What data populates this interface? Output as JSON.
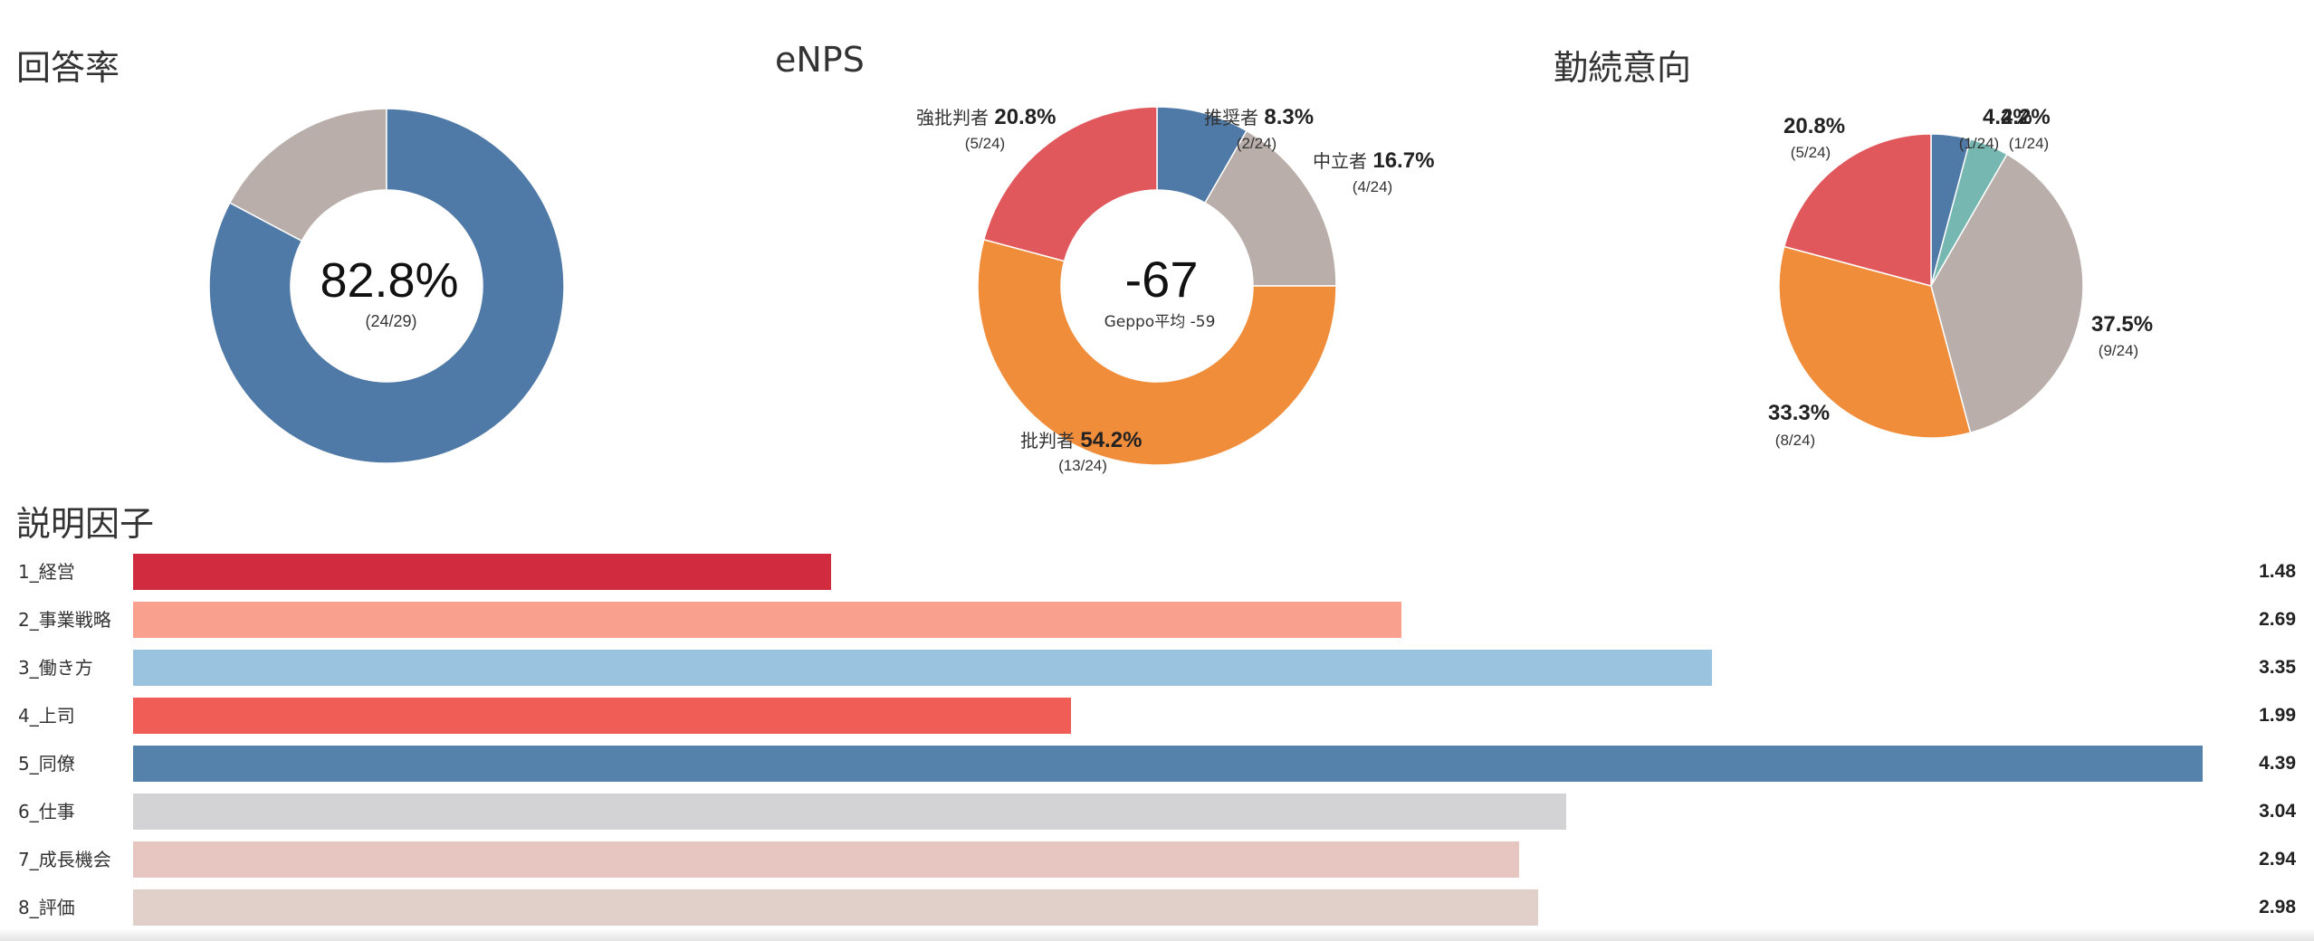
{
  "sections": {
    "response_rate_title": "回答率",
    "enps_title": "eNPS",
    "retention_title": "勤続意向",
    "factors_title": "説明因子"
  },
  "chart_data": [
    {
      "type": "pie",
      "variant": "donut",
      "title": "回答率",
      "center_value": "82.8%",
      "center_sub": "(24/29)",
      "slices": [
        {
          "label": "",
          "value": 24,
          "color": "#4f79a6"
        },
        {
          "label": "",
          "value": 5,
          "color": "#b9aea9"
        }
      ]
    },
    {
      "type": "pie",
      "variant": "donut",
      "title": "eNPS",
      "center_value": "-67",
      "center_sub": "Geppo平均 -59",
      "slices": [
        {
          "label": "推奨者",
          "value": 2,
          "percent": "8.3%",
          "count": "(2/24)",
          "color": "#4f79a6"
        },
        {
          "label": "中立者",
          "value": 4,
          "percent": "16.7%",
          "count": "(4/24)",
          "color": "#b9aea9"
        },
        {
          "label": "批判者",
          "value": 13,
          "percent": "54.2%",
          "count": "(13/24)",
          "color": "#f08d3b"
        },
        {
          "label": "強批判者",
          "value": 5,
          "percent": "20.8%",
          "count": "(5/24)",
          "color": "#e0585c"
        }
      ]
    },
    {
      "type": "pie",
      "title": "勤続意向",
      "slices": [
        {
          "label": "",
          "value": 1,
          "percent": "4.2%",
          "count": "(1/24)",
          "color": "#4f79a6"
        },
        {
          "label": "",
          "value": 1,
          "percent": "4.2%",
          "count": "(1/24)",
          "color": "#76b7b2"
        },
        {
          "label": "",
          "value": 9,
          "percent": "37.5%",
          "count": "(9/24)",
          "color": "#b9aea9"
        },
        {
          "label": "",
          "value": 8,
          "percent": "33.3%",
          "count": "(8/24)",
          "color": "#f08d3b"
        },
        {
          "label": "",
          "value": 5,
          "percent": "20.8%",
          "count": "(5/24)",
          "color": "#e0585c"
        }
      ]
    },
    {
      "type": "bar",
      "orientation": "horizontal",
      "title": "説明因子",
      "xlim": [
        0,
        4.39
      ],
      "categories": [
        "1_経営",
        "2_事業戦略",
        "3_働き方",
        "4_上司",
        "5_同僚",
        "6_仕事",
        "7_成長機会",
        "8_評価"
      ],
      "values": [
        1.48,
        2.69,
        3.35,
        1.99,
        4.39,
        3.04,
        2.94,
        2.98
      ],
      "value_labels": [
        "1.48",
        "2.69",
        "3.35",
        "1.99",
        "4.39",
        "3.04",
        "2.94",
        "2.98"
      ],
      "colors": [
        "#d12b40",
        "#f9a08e",
        "#9ac3e0",
        "#ef5d56",
        "#5582aa",
        "#d3d3d5",
        "#e7c6c2",
        "#e1d0ca"
      ]
    }
  ]
}
